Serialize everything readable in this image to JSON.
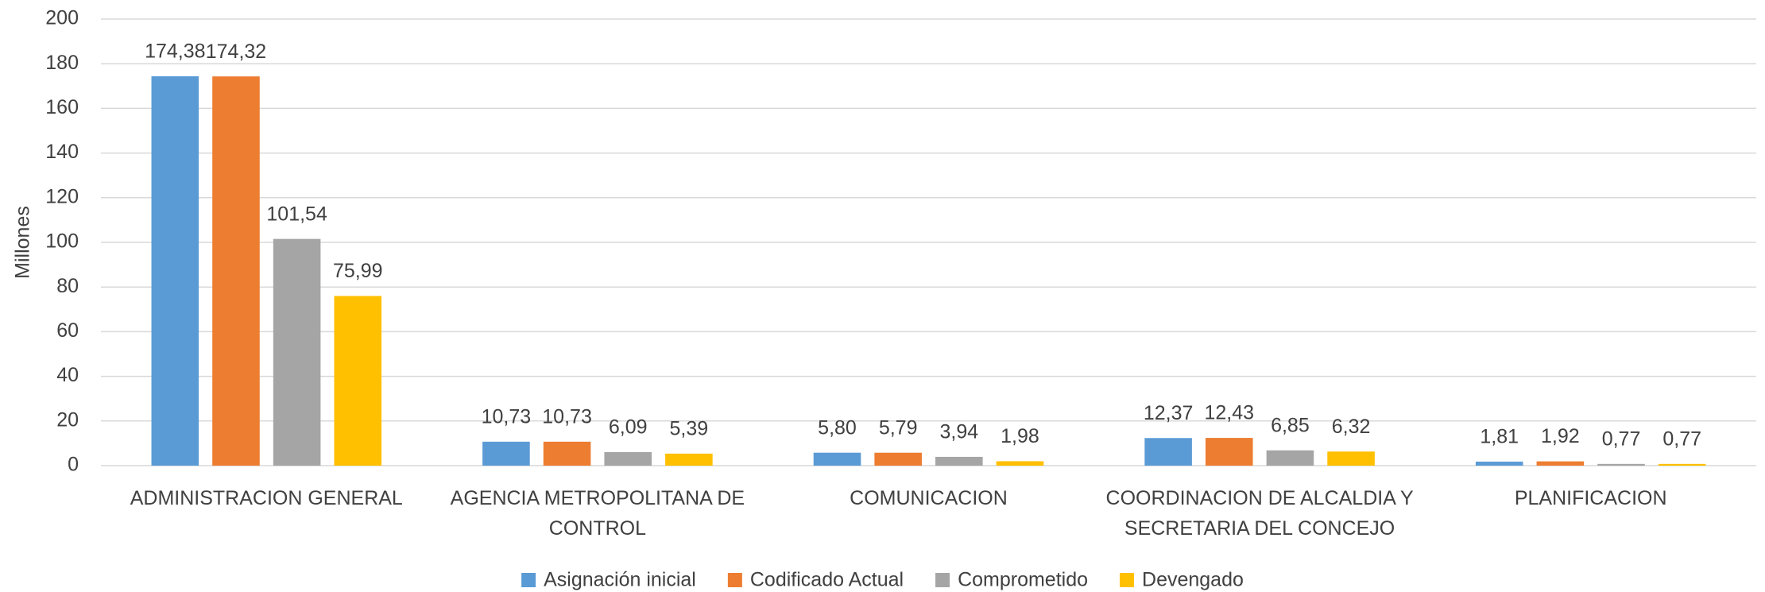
{
  "chart_data": {
    "type": "bar",
    "y_label": "Millones",
    "categories": [
      "ADMINISTRACION GENERAL",
      "AGENCIA METROPOLITANA DE CONTROL",
      "COMUNICACION",
      "COORDINACION DE ALCALDIA Y SECRETARIA DEL CONCEJO",
      "PLANIFICACION"
    ],
    "series": [
      {
        "name": "Asignación inicial",
        "color": "#5b9bd5",
        "values": [
          174.38,
          10.73,
          5.8,
          12.37,
          1.81
        ],
        "value_labels": [
          "174,38",
          "10,73",
          "5,80",
          "12,37",
          "1,81"
        ]
      },
      {
        "name": "Codificado Actual",
        "color": "#ed7d31",
        "values": [
          174.32,
          10.73,
          5.79,
          12.43,
          1.92
        ],
        "value_labels": [
          "174,32",
          "10,73",
          "5,79",
          "12,43",
          "1,92"
        ]
      },
      {
        "name": "Comprometido",
        "color": "#a5a5a5",
        "values": [
          101.54,
          6.09,
          3.94,
          6.85,
          0.77
        ],
        "value_labels": [
          "101,54",
          "6,09",
          "3,94",
          "6,85",
          "0,77"
        ]
      },
      {
        "name": "Devengado",
        "color": "#ffc000",
        "values": [
          75.99,
          5.39,
          1.98,
          6.32,
          0.77
        ],
        "value_labels": [
          "75,99",
          "5,39",
          "1,98",
          "6,32",
          "0,77"
        ]
      }
    ],
    "ylim": [
      0,
      200
    ],
    "yticks": [
      0,
      20,
      40,
      60,
      80,
      100,
      120,
      140,
      160,
      180,
      200
    ],
    "grid": true,
    "legend": "bottom"
  }
}
